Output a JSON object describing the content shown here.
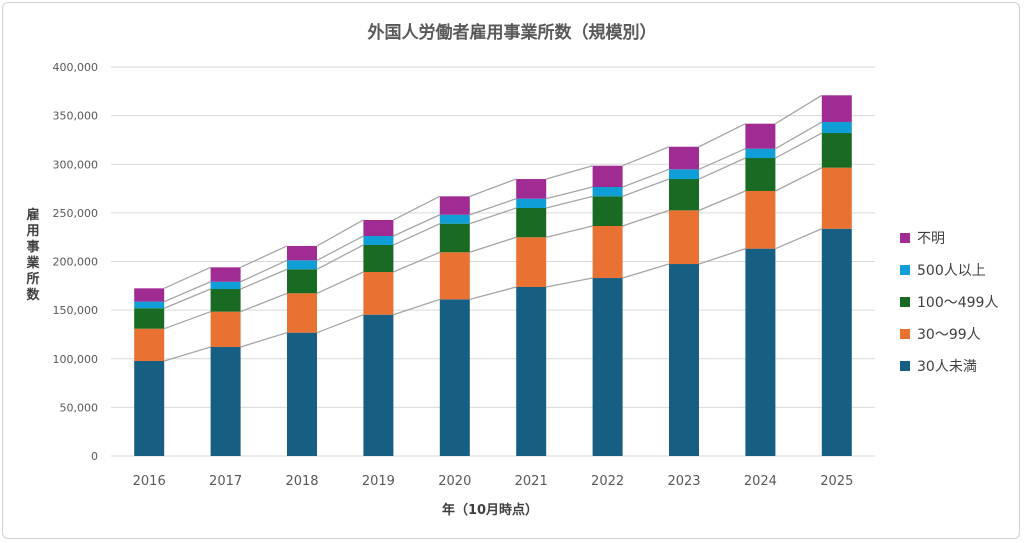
{
  "chart_data": {
    "type": "bar",
    "stacked": true,
    "title": "外国人労働者雇用事業所数（規模別）",
    "xlabel": "年（10月時点）",
    "ylabel": "雇用事業所数",
    "ylim": [
      0,
      400000
    ],
    "yticks": [
      "0",
      "50,000",
      "100,000",
      "150,000",
      "200,000",
      "250,000",
      "300,000",
      "350,000",
      "400,000"
    ],
    "grid": true,
    "legend_position": "right",
    "series_lines": true,
    "categories": [
      "2016",
      "2017",
      "2018",
      "2019",
      "2020",
      "2021",
      "2022",
      "2023",
      "2024",
      "2025"
    ],
    "series": [
      {
        "name": "30人未満",
        "color": "#175f82",
        "values": [
          97700,
          112100,
          126800,
          145300,
          161100,
          173800,
          183000,
          197400,
          213200,
          233700
        ]
      },
      {
        "name": "30〜99人",
        "color": "#e97132",
        "values": [
          33200,
          36300,
          40500,
          43900,
          48400,
          51100,
          53500,
          55200,
          59300,
          62800
        ]
      },
      {
        "name": "100〜499人",
        "color": "#196b24",
        "values": [
          21000,
          23300,
          24700,
          27800,
          29400,
          30100,
          30500,
          32200,
          33900,
          35600
        ]
      },
      {
        "name": "500人以上",
        "color": "#0f9ed5",
        "values": [
          6800,
          7500,
          9200,
          9200,
          9200,
          9600,
          9600,
          10000,
          9600,
          11300
        ]
      },
      {
        "name": "不明",
        "color": "#a02b93",
        "values": [
          13700,
          14800,
          14800,
          16500,
          18900,
          20200,
          21900,
          23200,
          25700,
          27500
        ]
      }
    ]
  }
}
